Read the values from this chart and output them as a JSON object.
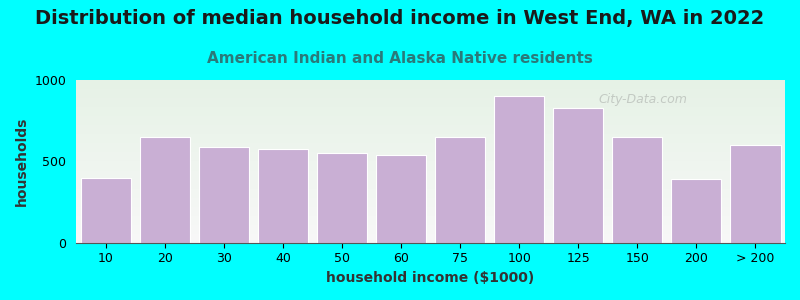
{
  "title": "Distribution of median household income in West End, WA in 2022",
  "subtitle": "American Indian and Alaska Native residents",
  "xlabel": "household income ($1000)",
  "ylabel": "households",
  "bar_labels": [
    "10",
    "20",
    "30",
    "40",
    "50",
    "60",
    "75",
    "100",
    "125",
    "150",
    "200",
    "> 200"
  ],
  "bar_values": [
    400,
    650,
    590,
    575,
    550,
    540,
    650,
    900,
    830,
    650,
    390,
    600
  ],
  "bar_color": "#c9afd4",
  "background_color": "#00ffff",
  "plot_bg_gradient_top": "#e6f2e6",
  "plot_bg_gradient_bottom": "#f8f8f8",
  "ylim": [
    0,
    1000
  ],
  "yticks": [
    0,
    500,
    1000
  ],
  "title_fontsize": 14,
  "subtitle_fontsize": 11,
  "axis_label_fontsize": 10,
  "tick_fontsize": 9,
  "title_color": "#1a1a1a",
  "subtitle_color": "#2a7a7a",
  "watermark": "City-Data.com"
}
